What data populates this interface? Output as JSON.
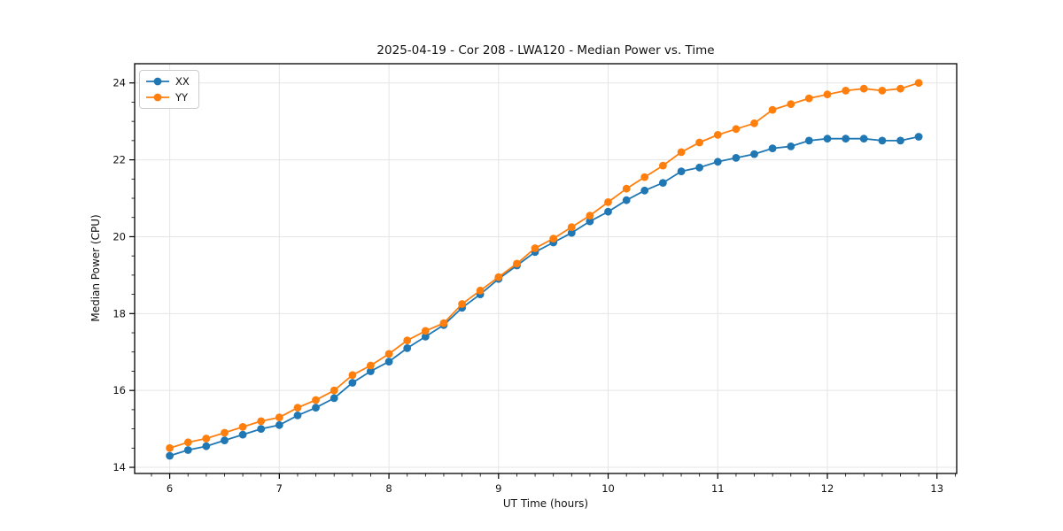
{
  "chart_data": {
    "type": "line",
    "title": "2025-04-19 - Cor 208 - LWA120 - Median Power vs. Time",
    "xlabel": "UT Time (hours)",
    "ylabel": "Median Power (CPU)",
    "xlim": [
      5.68,
      13.18
    ],
    "ylim": [
      13.84,
      24.5
    ],
    "xticks": [
      6,
      7,
      8,
      9,
      10,
      11,
      12,
      13
    ],
    "yticks": [
      14,
      16,
      18,
      20,
      22,
      24
    ],
    "x_minor_step": 0.16667,
    "y_minor_step": 0.5,
    "grid": true,
    "legend_position": "upper left",
    "background": "#ffffff",
    "grid_color": "#e5e5e5",
    "axis_color": "#000000",
    "x": [
      6.0,
      6.167,
      6.333,
      6.5,
      6.667,
      6.833,
      7.0,
      7.167,
      7.333,
      7.5,
      7.667,
      7.833,
      8.0,
      8.167,
      8.333,
      8.5,
      8.667,
      8.833,
      9.0,
      9.167,
      9.333,
      9.5,
      9.667,
      9.833,
      10.0,
      10.167,
      10.333,
      10.5,
      10.667,
      10.833,
      11.0,
      11.167,
      11.333,
      11.5,
      11.667,
      11.833,
      12.0,
      12.167,
      12.333,
      12.5,
      12.667,
      12.833
    ],
    "series": [
      {
        "name": "XX",
        "color": "#1f77b4",
        "values": [
          14.3,
          14.45,
          14.55,
          14.7,
          14.85,
          15.0,
          15.1,
          15.35,
          15.55,
          15.8,
          16.2,
          16.5,
          16.75,
          17.1,
          17.4,
          17.7,
          18.15,
          18.5,
          18.9,
          19.25,
          19.6,
          19.85,
          20.1,
          20.4,
          20.65,
          20.95,
          21.2,
          21.4,
          21.7,
          21.8,
          21.95,
          22.05,
          22.15,
          22.3,
          22.35,
          22.5,
          22.55,
          22.55,
          22.55,
          22.5,
          22.5,
          22.6
        ]
      },
      {
        "name": "YY",
        "color": "#ff7f0e",
        "values": [
          14.5,
          14.65,
          14.75,
          14.9,
          15.05,
          15.2,
          15.3,
          15.55,
          15.75,
          16.0,
          16.4,
          16.65,
          16.95,
          17.3,
          17.55,
          17.75,
          18.25,
          18.6,
          18.95,
          19.3,
          19.7,
          19.95,
          20.25,
          20.55,
          20.9,
          21.25,
          21.55,
          21.85,
          22.2,
          22.45,
          22.65,
          22.8,
          22.95,
          23.3,
          23.45,
          23.6,
          23.7,
          23.8,
          23.85,
          23.8,
          23.85,
          24.0
        ]
      }
    ]
  }
}
